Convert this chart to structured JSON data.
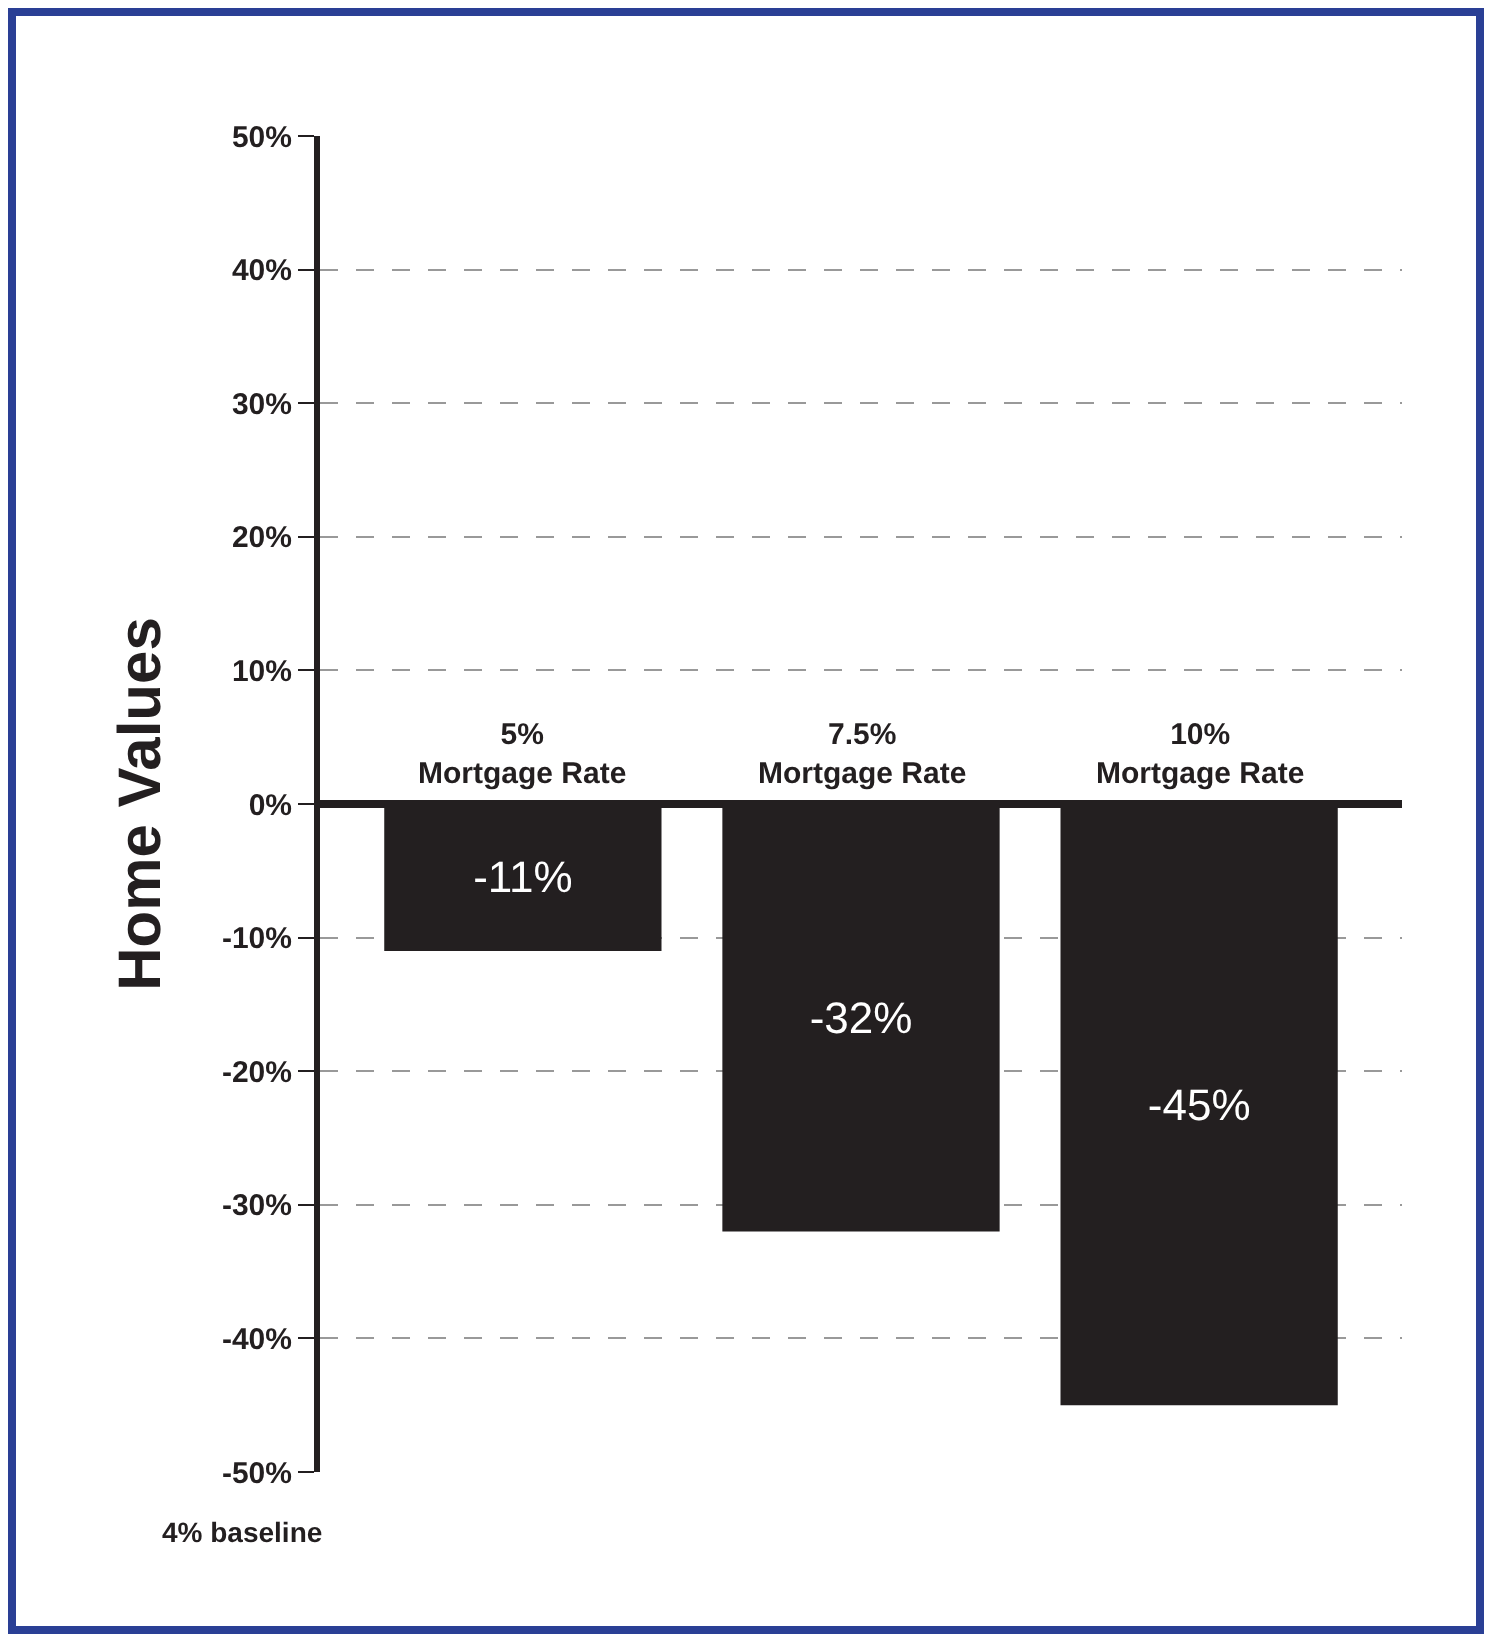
{
  "chart_data": {
    "type": "bar",
    "ylabel": "Home Values",
    "categories": [
      "5% Mortgage Rate",
      "7.5% Mortgage Rate",
      "10% Mortgage Rate"
    ],
    "values": [
      -11,
      -32,
      -45
    ],
    "color": "#231f20",
    "value_labels": [
      "-11%",
      "-32%",
      "-45%"
    ],
    "ylim": [
      -50,
      50
    ],
    "yticks": [
      {
        "value": -50,
        "label": "-50%"
      },
      {
        "value": -40,
        "label": "-40%"
      },
      {
        "value": -30,
        "label": "-30%"
      },
      {
        "value": -20,
        "label": "-20%"
      },
      {
        "value": -10,
        "label": "-10%"
      },
      {
        "value": 0,
        "label": "0%"
      },
      {
        "value": 10,
        "label": "10%"
      },
      {
        "value": 20,
        "label": "20%"
      },
      {
        "value": 30,
        "label": "30%"
      },
      {
        "value": 40,
        "label": "40%"
      },
      {
        "value": 50,
        "label": "50%"
      }
    ],
    "grid": "y",
    "annotations": [
      "4% baseline"
    ]
  }
}
